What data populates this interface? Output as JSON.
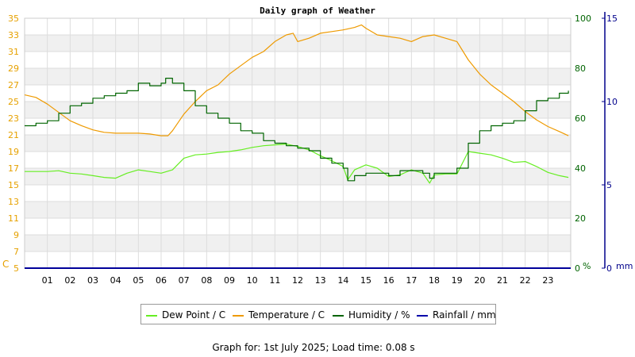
{
  "chart_data": {
    "type": "line",
    "title": "Daily graph of Weather",
    "footer": "Graph for: 1st July 2025; Load time: 0.08 s",
    "x_tick_labels": [
      "01",
      "02",
      "03",
      "04",
      "05",
      "06",
      "07",
      "08",
      "09",
      "10",
      "11",
      "12",
      "13",
      "14",
      "15",
      "16",
      "17",
      "18",
      "19",
      "20",
      "21",
      "22",
      "23"
    ],
    "x_range_hours": [
      0,
      24
    ],
    "left_axis": {
      "unit_label": "C",
      "ticks": [
        "5",
        "7",
        "9",
        "11",
        "13",
        "15",
        "17",
        "19",
        "21",
        "23",
        "25",
        "27",
        "29",
        "31",
        "33",
        "35"
      ],
      "range": [
        5,
        35
      ],
      "color": "#e6a100"
    },
    "humidity_axis": {
      "unit_label": "%",
      "ticks": [
        "0",
        "20",
        "40",
        "60",
        "80",
        "100"
      ],
      "range": [
        0,
        100
      ],
      "color": "#006400"
    },
    "rain_axis": {
      "unit_label": "mm",
      "ticks": [
        "0",
        "5",
        "10",
        "15"
      ],
      "range": [
        0,
        15
      ],
      "color": "#00008b"
    },
    "grid": true,
    "legend_position": "bottom",
    "series": [
      {
        "name": "Dew Point / C",
        "axis": "left",
        "color": "#66ee22",
        "x": [
          0,
          0.5,
          1,
          1.5,
          2,
          2.5,
          3,
          3.5,
          4,
          4.5,
          5,
          5.5,
          6,
          6.5,
          7,
          7.5,
          8,
          8.5,
          9,
          9.5,
          10,
          10.5,
          11,
          11.5,
          12,
          12.5,
          13,
          13.5,
          14,
          14.2,
          14.5,
          15,
          15.5,
          16,
          16.5,
          17,
          17.5,
          17.8,
          18,
          18.5,
          19,
          19.5,
          20,
          20.5,
          21,
          21.5,
          22,
          22.5,
          23,
          23.5,
          23.9
        ],
        "y": [
          16.6,
          16.6,
          16.6,
          16.7,
          16.4,
          16.3,
          16.1,
          15.9,
          15.8,
          16.4,
          16.8,
          16.6,
          16.4,
          16.8,
          18.2,
          18.6,
          18.7,
          18.9,
          19.0,
          19.2,
          19.5,
          19.7,
          19.8,
          19.9,
          19.6,
          19.2,
          18.5,
          17.9,
          17.2,
          15.6,
          16.8,
          17.4,
          17.0,
          16.0,
          16.2,
          16.8,
          16.4,
          15.2,
          16.2,
          16.3,
          16.3,
          19.0,
          18.8,
          18.6,
          18.2,
          17.7,
          17.8,
          17.2,
          16.5,
          16.1,
          15.9
        ]
      },
      {
        "name": "Temperature / C",
        "axis": "left",
        "color": "#ee9a00",
        "x": [
          0,
          0.5,
          1,
          1.5,
          2,
          2.5,
          3,
          3.5,
          4,
          4.5,
          5,
          5.5,
          6,
          6.3,
          6.5,
          7,
          7.5,
          8,
          8.5,
          9,
          9.5,
          10,
          10.5,
          11,
          11.5,
          11.8,
          12,
          12.5,
          13,
          13.5,
          14,
          14.5,
          14.8,
          15,
          15.5,
          16,
          16.5,
          17,
          17.5,
          18,
          18.5,
          19,
          19.5,
          20,
          20.5,
          21,
          21.5,
          22,
          22.5,
          23,
          23.5,
          23.9
        ],
        "y": [
          25.8,
          25.5,
          24.7,
          23.7,
          22.7,
          22.1,
          21.6,
          21.3,
          21.2,
          21.2,
          21.2,
          21.1,
          20.9,
          20.9,
          21.5,
          23.5,
          25.0,
          26.3,
          27.0,
          28.3,
          29.3,
          30.3,
          31.0,
          32.2,
          33.0,
          33.2,
          32.2,
          32.6,
          33.2,
          33.4,
          33.6,
          33.9,
          34.2,
          33.8,
          33.0,
          32.8,
          32.6,
          32.2,
          32.8,
          33.0,
          32.6,
          32.2,
          30.0,
          28.3,
          27.0,
          26.0,
          25.0,
          23.8,
          22.8,
          22.0,
          21.4,
          20.9
        ]
      },
      {
        "name": "Humidity / %",
        "axis": "humidity",
        "color": "#006400",
        "x": [
          0,
          0.5,
          1,
          1.5,
          2,
          2.5,
          3,
          3.5,
          4,
          4.5,
          5,
          5.5,
          6,
          6.2,
          6.5,
          7,
          7.5,
          8,
          8.5,
          9,
          9.5,
          10,
          10.5,
          11,
          11.5,
          12,
          12.5,
          13,
          13.5,
          14,
          14.2,
          14.5,
          15,
          15.5,
          16,
          16.5,
          17,
          17.5,
          17.8,
          18,
          18.5,
          19,
          19.5,
          20,
          20.5,
          21,
          21.5,
          22,
          22.5,
          23,
          23.5,
          23.9
        ],
        "y": [
          57,
          58,
          59,
          62,
          65,
          66,
          68,
          69,
          70,
          71,
          74,
          73,
          74,
          76,
          74,
          71,
          65,
          62,
          60,
          58,
          55,
          54,
          51,
          50,
          49,
          48,
          47,
          44,
          42,
          40,
          35,
          37,
          38,
          38,
          37,
          39,
          39,
          38,
          36,
          38,
          38,
          40,
          50,
          55,
          57,
          58,
          59,
          63,
          67,
          68,
          70,
          71
        ]
      },
      {
        "name": "Rainfall / mm",
        "axis": "rain",
        "color": "#0000aa",
        "x": [
          0,
          24
        ],
        "y": [
          0,
          0
        ]
      }
    ]
  }
}
